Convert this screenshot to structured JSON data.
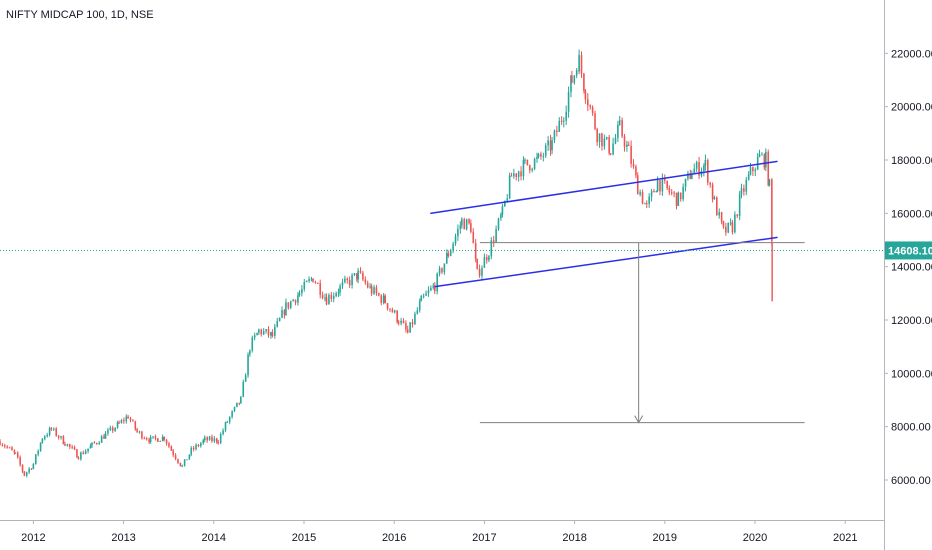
{
  "chart_data": {
    "type": "candlestick",
    "title": "NIFTY MIDCAP 100, 1D, NSE",
    "x_ticks": [
      "2012",
      "2013",
      "2014",
      "2015",
      "2016",
      "2017",
      "2018",
      "2019",
      "2020",
      "2021"
    ],
    "y_ticks": [
      6000,
      8000,
      10000,
      12000,
      14000,
      16000,
      18000,
      20000,
      22000
    ],
    "y_tick_labels": [
      "6000.00",
      "8000.00",
      "10000.00",
      "12000.00",
      "14000.00",
      "16000.00",
      "18000.00",
      "20000.00",
      "22000.00"
    ],
    "ylim": [
      4500,
      24000
    ],
    "xlim": [
      2011.63,
      2021.43
    ],
    "last_price": 14608.1,
    "last_price_label": "14608.10",
    "series": [
      {
        "points": [
          [
            2011.63,
            7450
          ],
          [
            2011.8,
            6950
          ],
          [
            2011.9,
            6200
          ],
          [
            2012.0,
            6600
          ],
          [
            2012.1,
            7600
          ],
          [
            2012.2,
            7900
          ],
          [
            2012.35,
            7400
          ],
          [
            2012.5,
            6900
          ],
          [
            2012.65,
            7300
          ],
          [
            2012.8,
            7700
          ],
          [
            2012.95,
            8100
          ],
          [
            2013.05,
            8400
          ],
          [
            2013.15,
            7800
          ],
          [
            2013.3,
            7500
          ],
          [
            2013.45,
            7600
          ],
          [
            2013.55,
            7000
          ],
          [
            2013.65,
            6500
          ],
          [
            2013.75,
            7100
          ],
          [
            2013.9,
            7500
          ],
          [
            2014.05,
            7500
          ],
          [
            2014.15,
            8200
          ],
          [
            2014.3,
            9000
          ],
          [
            2014.4,
            11000
          ],
          [
            2014.5,
            11600
          ],
          [
            2014.65,
            11400
          ],
          [
            2014.8,
            12500
          ],
          [
            2014.95,
            13000
          ],
          [
            2015.1,
            13600
          ],
          [
            2015.25,
            12800
          ],
          [
            2015.4,
            13200
          ],
          [
            2015.6,
            13700
          ],
          [
            2015.75,
            13100
          ],
          [
            2015.9,
            12700
          ],
          [
            2016.05,
            12000
          ],
          [
            2016.15,
            11500
          ],
          [
            2016.3,
            12700
          ],
          [
            2016.45,
            13300
          ],
          [
            2016.6,
            14500
          ],
          [
            2016.75,
            15700
          ],
          [
            2016.85,
            15500
          ],
          [
            2016.92,
            13700
          ],
          [
            2017.05,
            14600
          ],
          [
            2017.2,
            16000
          ],
          [
            2017.3,
            17400
          ],
          [
            2017.45,
            17800
          ],
          [
            2017.6,
            18000
          ],
          [
            2017.75,
            18600
          ],
          [
            2017.88,
            19800
          ],
          [
            2017.97,
            21000
          ],
          [
            2018.05,
            21700
          ],
          [
            2018.12,
            20600
          ],
          [
            2018.25,
            19000
          ],
          [
            2018.4,
            18400
          ],
          [
            2018.5,
            19200
          ],
          [
            2018.6,
            18300
          ],
          [
            2018.7,
            17000
          ],
          [
            2018.8,
            16200
          ],
          [
            2018.92,
            17200
          ],
          [
            2019.05,
            16800
          ],
          [
            2019.15,
            16500
          ],
          [
            2019.3,
            17600
          ],
          [
            2019.45,
            17800
          ],
          [
            2019.55,
            16400
          ],
          [
            2019.65,
            15300
          ],
          [
            2019.75,
            15500
          ],
          [
            2019.85,
            16700
          ],
          [
            2019.95,
            17500
          ],
          [
            2020.05,
            18100
          ],
          [
            2020.12,
            18000
          ],
          [
            2020.16,
            17000
          ],
          [
            2020.19,
            14608
          ]
        ]
      }
    ],
    "last_candle": {
      "x": 2020.19,
      "high": 14900,
      "low": 12700
    },
    "annotations": [
      {
        "type": "trendline",
        "color": "#2a2ee8",
        "from": [
          2016.4,
          16000
        ],
        "to": [
          2020.25,
          17950
        ]
      },
      {
        "type": "trendline",
        "color": "#2a2ee8",
        "from": [
          2016.45,
          13250
        ],
        "to": [
          2020.25,
          15100
        ]
      },
      {
        "type": "hline",
        "color": "#808080",
        "y": 14900,
        "from": 2016.95,
        "to": 2020.55
      },
      {
        "type": "hline",
        "color": "#808080",
        "y": 8150,
        "from": 2016.95,
        "to": 2020.55
      },
      {
        "type": "arrow",
        "color": "#808080",
        "x": 2018.71,
        "from": 14900,
        "to": 8150
      }
    ],
    "price_line_color": "#26a69a",
    "up_color": "#26a69a",
    "down_color": "#ef5350",
    "grid": false
  }
}
